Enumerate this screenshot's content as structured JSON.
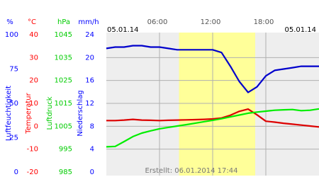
{
  "chart_data": {
    "type": "line",
    "date_left": "05.01.14",
    "date_right": "05.01.14",
    "footer": "Erstellt: 06.01.2014 17:44",
    "xlim": [
      0,
      24
    ],
    "xticks": [
      {
        "value": 6,
        "label": "06:00"
      },
      {
        "value": 12,
        "label": "12:00"
      },
      {
        "value": 18,
        "label": "18:00"
      }
    ],
    "daylight": [
      8.2,
      16.8
    ],
    "daylight_color": "#ffff99",
    "plot_background": "#eeeeee",
    "grid": true,
    "axes": [
      {
        "unit": "%",
        "title": "Luftfeuchtigkeit",
        "color": "#0000ff",
        "lim": [
          0,
          100
        ],
        "ticks": [
          0,
          25,
          50,
          75,
          100
        ]
      },
      {
        "unit": "°C",
        "title": "Temperatur",
        "color": "#ff0000",
        "lim": [
          -20,
          40
        ],
        "ticks": [
          -20,
          -10,
          0,
          10,
          20,
          30,
          40
        ]
      },
      {
        "unit": "hPa",
        "title": "Luftdruck",
        "color": "#00cc00",
        "lim": [
          985,
          1045
        ],
        "ticks": [
          985,
          995,
          1005,
          1015,
          1025,
          1035,
          1045
        ]
      },
      {
        "unit": "mm/h",
        "title": "Niederschlag",
        "color": "#0000ff",
        "lim": [
          0,
          24
        ],
        "ticks": [
          0,
          4,
          8,
          12,
          16,
          20,
          24
        ],
        "grid": true
      }
    ],
    "x": [
      0,
      1,
      2,
      3,
      4,
      5,
      6,
      7,
      8,
      9,
      10,
      11,
      12,
      13,
      14,
      15,
      16,
      17,
      18,
      19,
      20,
      21,
      22,
      23,
      24
    ],
    "series": [
      {
        "axis": 0,
        "color": "#0000cc",
        "values": [
          90,
          91,
          91,
          92,
          92,
          91,
          91,
          90,
          89,
          89,
          89,
          89,
          89,
          87,
          77,
          66,
          58,
          62,
          70,
          74,
          75,
          76,
          77,
          77,
          77
        ]
      },
      {
        "axis": 1,
        "color": "#dd0000",
        "values": [
          2.5,
          2.5,
          2.7,
          3.0,
          2.7,
          2.6,
          2.5,
          2.6,
          2.7,
          2.8,
          2.9,
          3.0,
          3.2,
          3.6,
          4.8,
          6.5,
          7.5,
          5.0,
          2.2,
          1.8,
          1.3,
          0.9,
          0.5,
          0.1,
          -0.3
        ]
      },
      {
        "axis": 2,
        "color": "#00ee00",
        "values": [
          996.0,
          996.2,
          998.3,
          1000.5,
          1002.0,
          1003.0,
          1003.9,
          1004.5,
          1005.1,
          1005.7,
          1006.3,
          1007.0,
          1007.6,
          1008.3,
          1009.1,
          1009.9,
          1010.7,
          1011.2,
          1011.6,
          1012.0,
          1012.2,
          1012.3,
          1011.8,
          1012.0,
          1012.6
        ]
      }
    ]
  }
}
